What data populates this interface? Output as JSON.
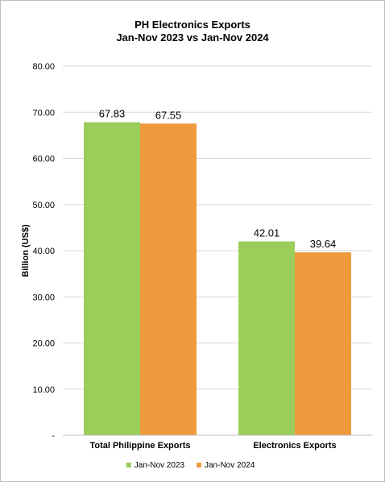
{
  "chart_data": {
    "type": "bar",
    "title": "PH Electronics Exports",
    "subtitle": "Jan-Nov 2023 vs Jan-Nov 2024",
    "xlabel": "",
    "ylabel": "Billion (US$)",
    "categories": [
      "Total Philippine Exports",
      "Electronics Exports"
    ],
    "series": [
      {
        "name": "Jan-Nov 2023",
        "values": [
          67.83,
          42.01
        ],
        "labels": [
          "67.83",
          "42.01"
        ],
        "color": "#9ACD5A"
      },
      {
        "name": "Jan-Nov 2024",
        "values": [
          67.55,
          39.64
        ],
        "labels": [
          "67.55",
          "39.64"
        ],
        "color": "#F09A3E"
      }
    ],
    "ylim": [
      0,
      80
    ],
    "yticks": [
      0,
      10,
      20,
      30,
      40,
      50,
      60,
      70,
      80
    ],
    "ytick_labels": [
      "-",
      "10.00",
      "20.00",
      "30.00",
      "40.00",
      "50.00",
      "60.00",
      "70.00",
      "80.00"
    ],
    "grid": true,
    "legend_position": "bottom"
  }
}
